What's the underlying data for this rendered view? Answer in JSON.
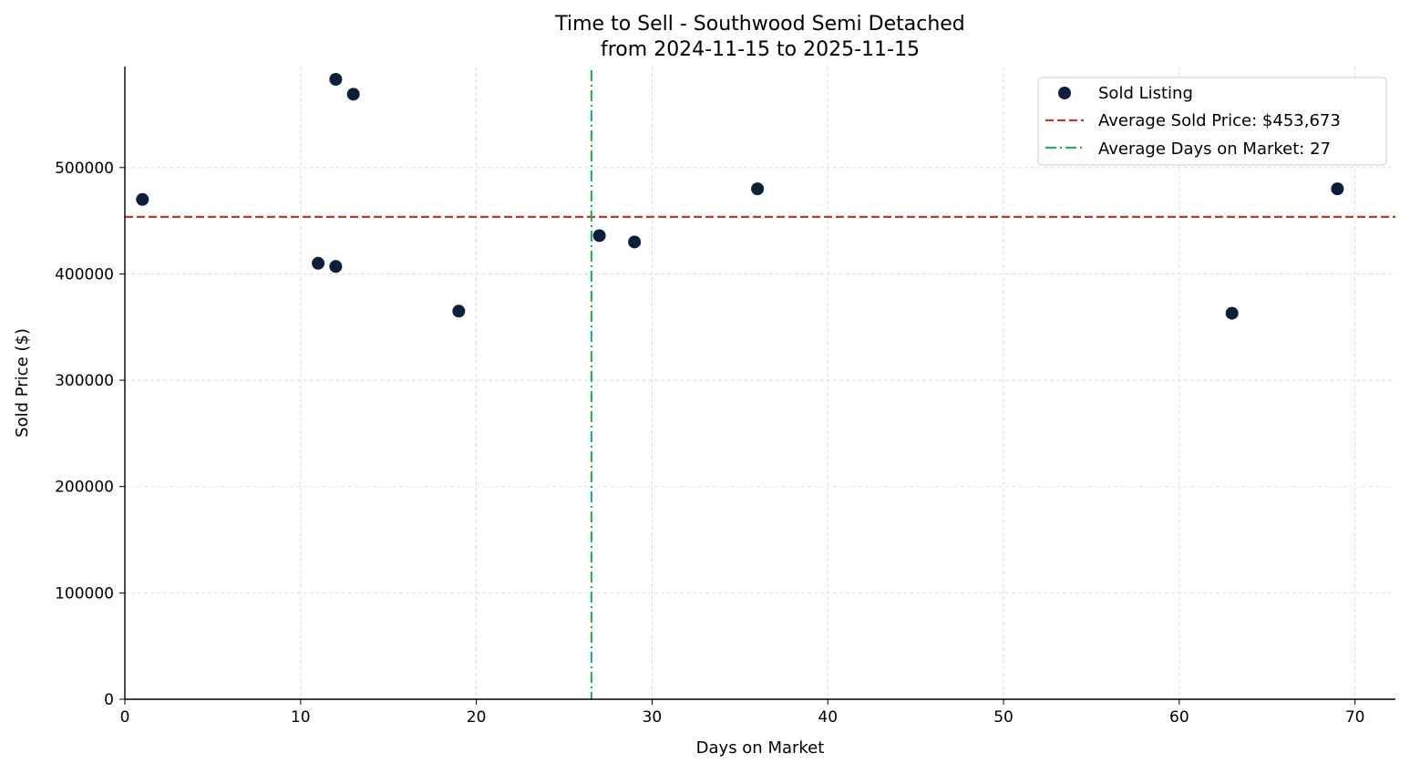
{
  "chart_data": {
    "type": "scatter",
    "title": "Time to Sell - Southwood Semi Detached",
    "subtitle": "from 2024-11-15 to 2025-11-15",
    "xlabel": "Days on Market",
    "ylabel": "Sold Price ($)",
    "xlim": [
      0,
      72.3
    ],
    "ylim": [
      0,
      595000
    ],
    "xticks": [
      0,
      10,
      20,
      30,
      40,
      50,
      60,
      70
    ],
    "yticks": [
      0,
      100000,
      200000,
      300000,
      400000,
      500000
    ],
    "grid": true,
    "legend_placement": "top-right",
    "series": [
      {
        "name": "Sold Listing",
        "color": "#0a1f3c",
        "points": [
          {
            "x": 1,
            "y": 470000
          },
          {
            "x": 11,
            "y": 410000
          },
          {
            "x": 12,
            "y": 407000
          },
          {
            "x": 12,
            "y": 583000
          },
          {
            "x": 13,
            "y": 569000
          },
          {
            "x": 19,
            "y": 365000
          },
          {
            "x": 27,
            "y": 436000
          },
          {
            "x": 29,
            "y": 430000
          },
          {
            "x": 36,
            "y": 480000
          },
          {
            "x": 63,
            "y": 363000
          },
          {
            "x": 69,
            "y": 480000
          }
        ]
      }
    ],
    "reference_lines": [
      {
        "name": "Average Sold Price: $453,673",
        "orientation": "horizontal",
        "value": 453673,
        "color": "#c0392b",
        "style": "dashed"
      },
      {
        "name": "Average Days on Market: 27",
        "orientation": "vertical",
        "value": 26.55,
        "color": "#27ae60",
        "style": "dashdot"
      }
    ]
  }
}
